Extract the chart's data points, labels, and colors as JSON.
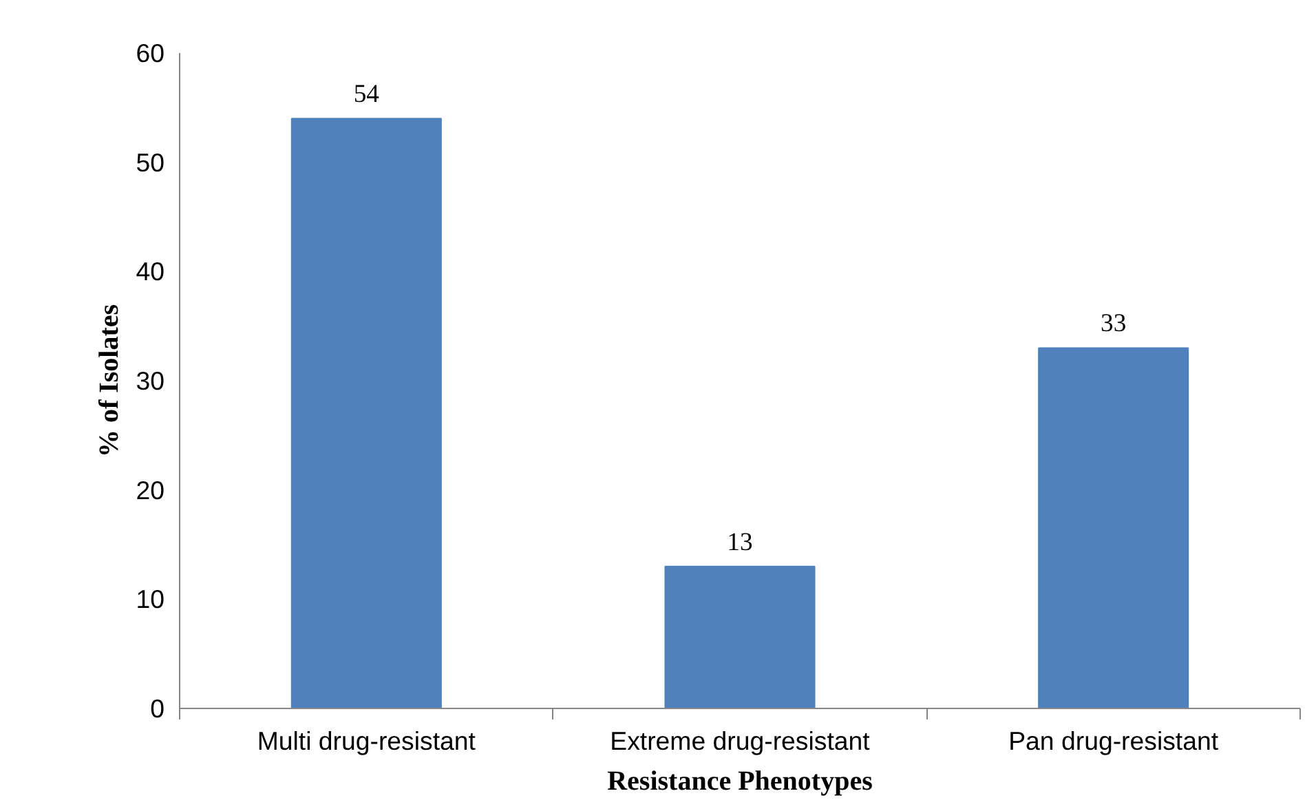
{
  "chart_data": {
    "type": "bar",
    "xlabel": "Resistance Phenotypes",
    "ylabel": "% of Isolates",
    "categories": [
      "Multi drug-resistant",
      "Extreme drug-resistant",
      "Pan drug-resistant"
    ],
    "values": [
      54,
      13,
      33
    ],
    "color": "#4f81bd",
    "ylim": [
      0,
      60
    ],
    "yticks": [
      0,
      10,
      20,
      30,
      40,
      50,
      60
    ],
    "grid": false,
    "data_labels": true
  }
}
